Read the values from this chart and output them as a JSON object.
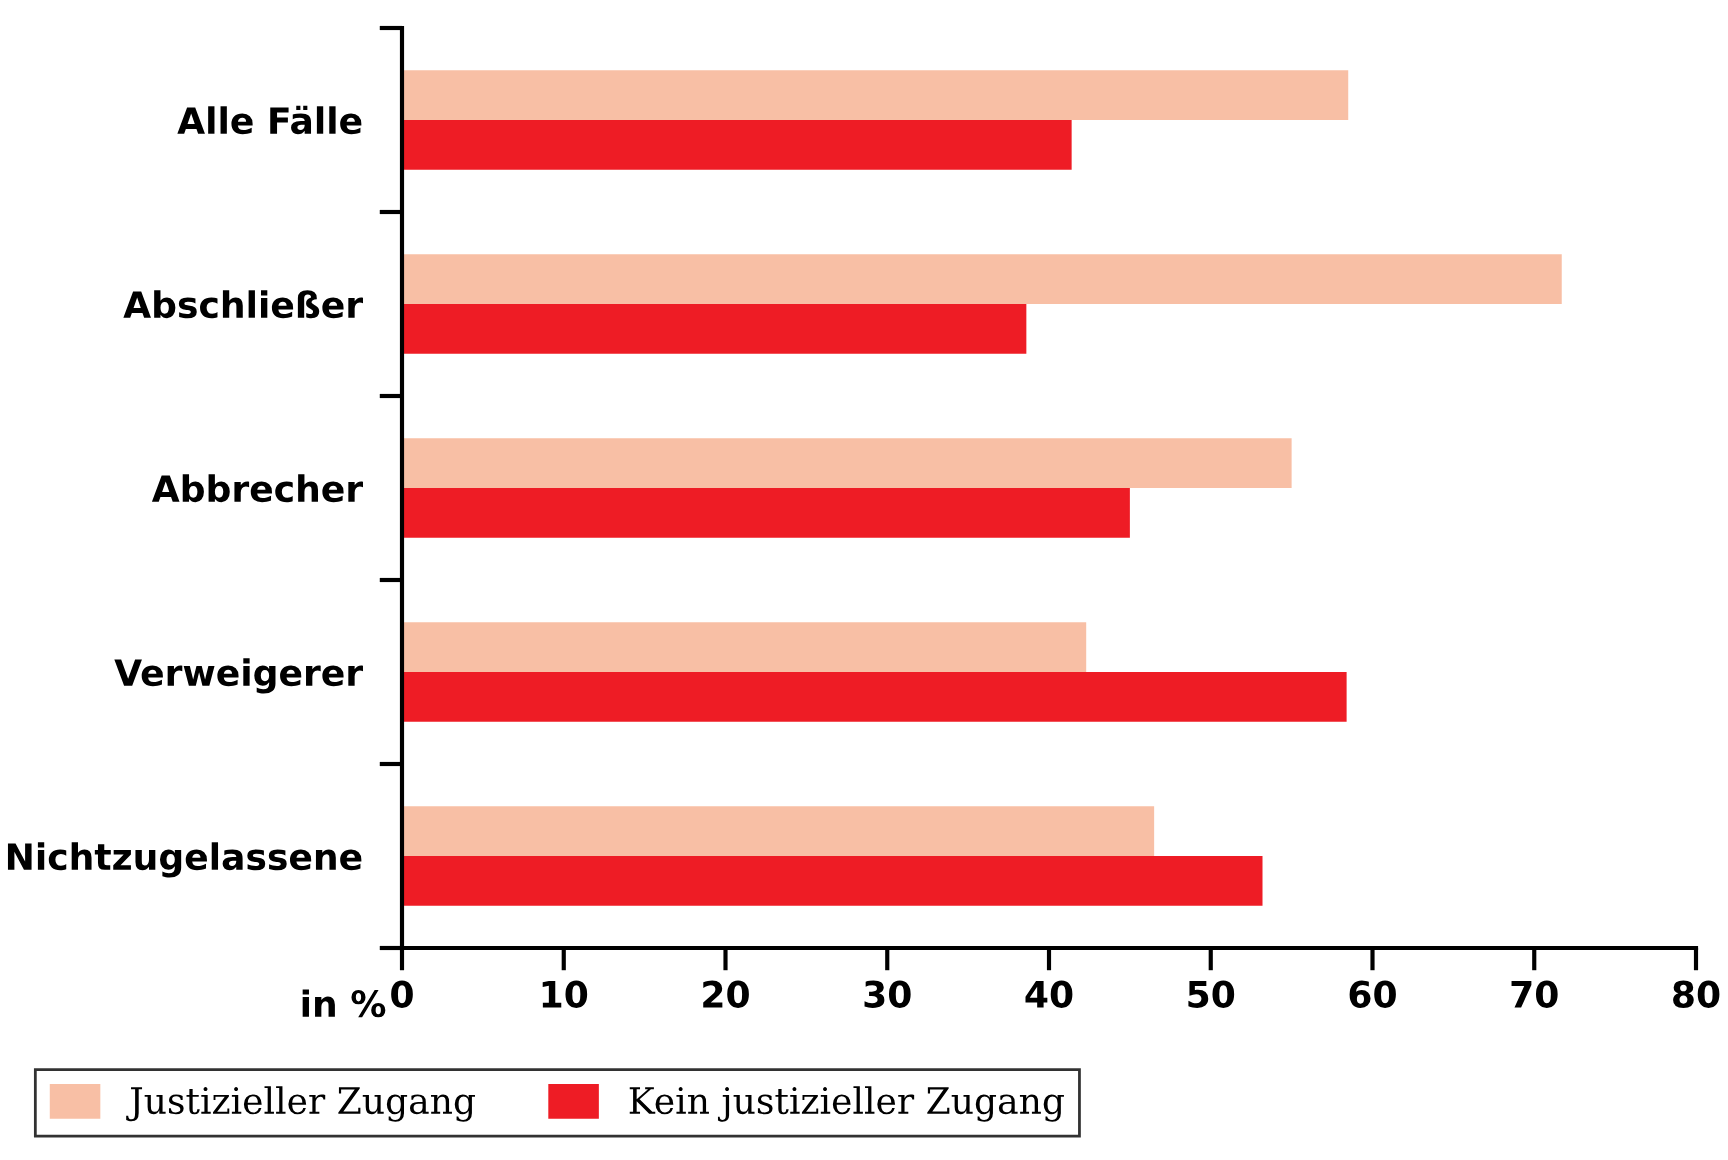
{
  "chart_data": {
    "type": "bar",
    "orientation": "horizontal",
    "categories": [
      "Alle Fälle",
      "Abschließer",
      "Abbrecher",
      "Verweigerer",
      "Nichtzugelassene"
    ],
    "series": [
      {
        "name": "Justizieller Zugang",
        "color": "#f8bfa5",
        "values": [
          58.5,
          71.7,
          55.0,
          42.3,
          46.5
        ]
      },
      {
        "name": "Kein justizieller Zugang",
        "color": "#ee1c25",
        "values": [
          41.4,
          38.6,
          45.0,
          58.4,
          53.2
        ]
      }
    ],
    "xlabel": "in %",
    "xlim": [
      0,
      80
    ],
    "xticks": [
      0,
      10,
      20,
      30,
      40,
      50,
      60,
      70,
      80
    ],
    "grid": false,
    "legend": "bottom left"
  }
}
